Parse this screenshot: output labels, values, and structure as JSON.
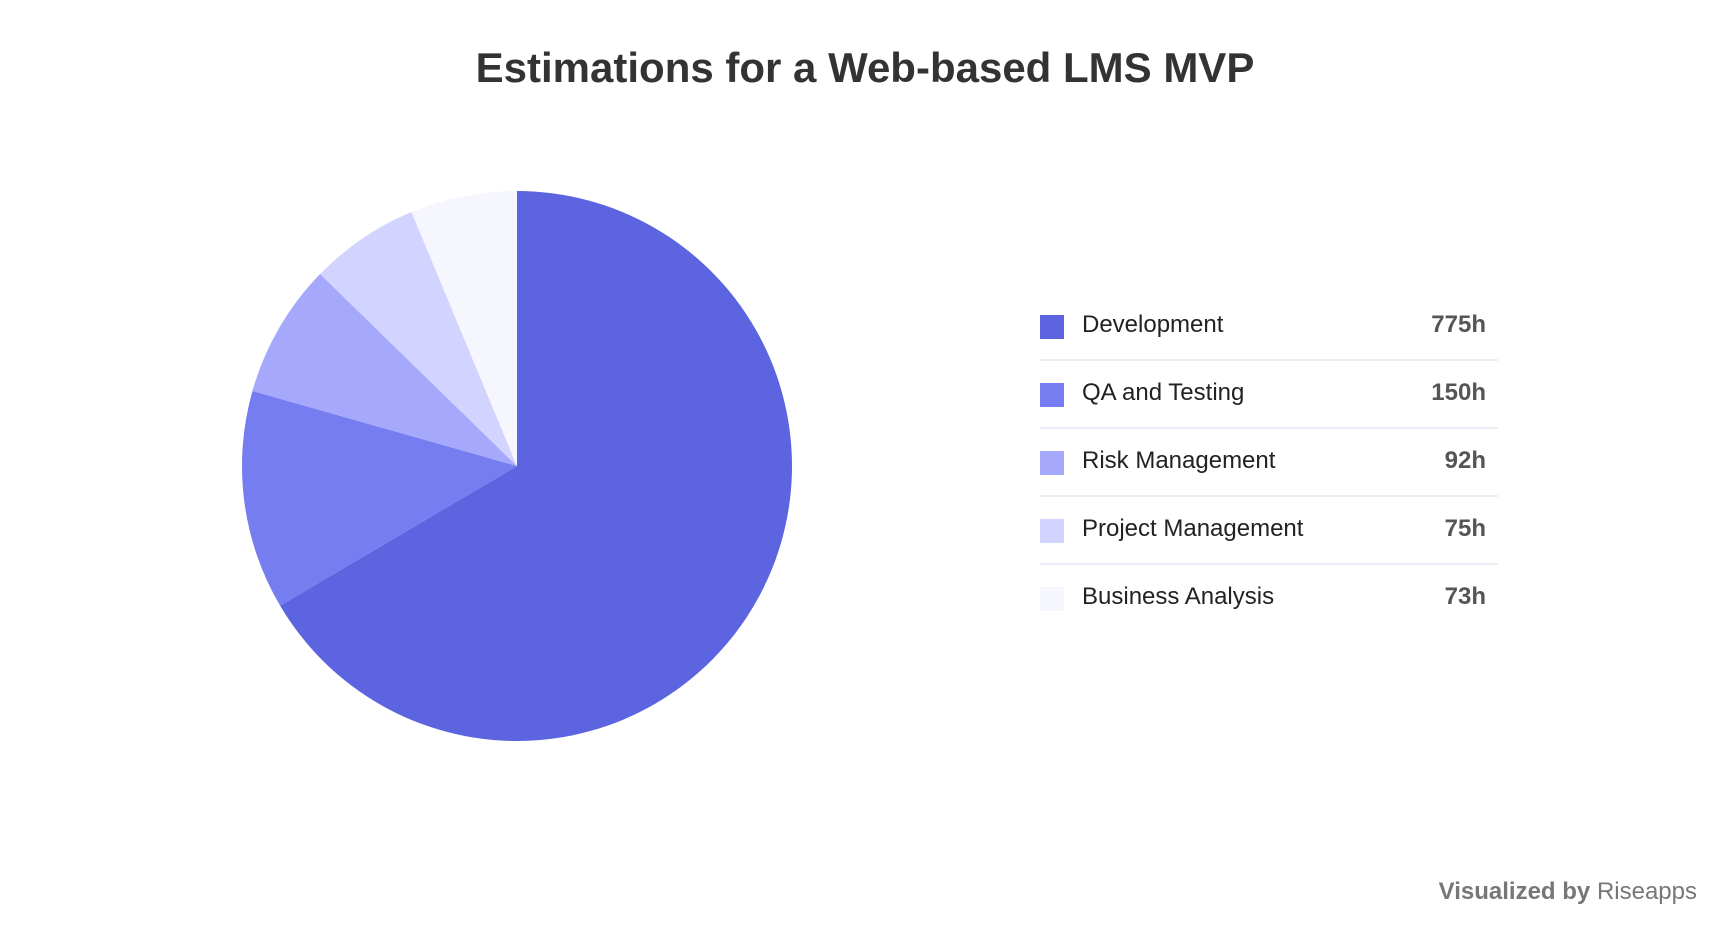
{
  "chart_data": {
    "type": "pie",
    "title": "Estimations for a Web-based LMS MVP",
    "unit": "h",
    "legend_position": "right",
    "categories": [
      "Development",
      "QA and Testing",
      "Risk Management",
      "Project Management",
      "Business Analysis"
    ],
    "values": [
      775,
      150,
      92,
      75,
      73
    ],
    "value_labels": [
      "775h",
      "150h",
      "92h",
      "75h",
      "73h"
    ],
    "colors": [
      "#5c64df",
      "#767df0",
      "#a6a8fc",
      "#d2d3fe",
      "#f6f6fe"
    ]
  },
  "credit": {
    "prefix": "Visualized by",
    "brand": "Riseapps"
  }
}
